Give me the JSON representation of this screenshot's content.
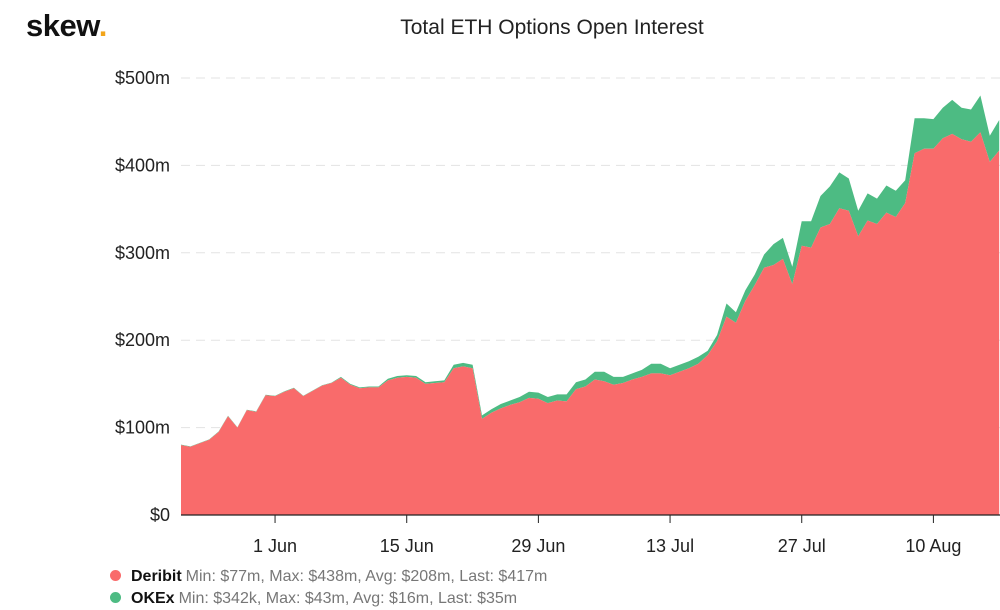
{
  "brand": {
    "logo_text": "skew",
    "logo_dot": "."
  },
  "chart_data": {
    "type": "area",
    "stacked": true,
    "title": "Total ETH Options Open Interest",
    "ylim": [
      0,
      500
    ],
    "yticks": [
      0,
      100,
      200,
      300,
      400,
      500
    ],
    "ytick_labels": [
      "$0",
      "$100m",
      "$200m",
      "$300m",
      "$400m",
      "$500m"
    ],
    "x_start": "2020-05-22",
    "xtick_labels": [
      {
        "label": "1 Jun",
        "date": "2020-06-01"
      },
      {
        "label": "15 Jun",
        "date": "2020-06-15"
      },
      {
        "label": "29 Jun",
        "date": "2020-06-29"
      },
      {
        "label": "13 Jul",
        "date": "2020-07-13"
      },
      {
        "label": "27 Jul",
        "date": "2020-07-27"
      },
      {
        "label": "10 Aug",
        "date": "2020-08-10"
      }
    ],
    "grid": true,
    "legend_position": "bottom-left",
    "series": [
      {
        "name": "Deribit",
        "color": "#f96b6b",
        "summary": "Min: $77m, Max: $438m, Avg: $208m, Last: $417m",
        "values": [
          80,
          78,
          82,
          86,
          95,
          113,
          100,
          120,
          118,
          137,
          136,
          141,
          145,
          136,
          142,
          148,
          151,
          157,
          149,
          145,
          146,
          146,
          154,
          157,
          158,
          157,
          150,
          151,
          152,
          168,
          170,
          168,
          110,
          117,
          122,
          126,
          129,
          134,
          133,
          128,
          131,
          130,
          144,
          147,
          155,
          153,
          149,
          151,
          155,
          158,
          162,
          162,
          160,
          164,
          168,
          173,
          183,
          199,
          227,
          220,
          245,
          263,
          283,
          286,
          293,
          264,
          308,
          306,
          329,
          333,
          351,
          348,
          319,
          337,
          333,
          346,
          341,
          357,
          414,
          419,
          419,
          431,
          436,
          430,
          427,
          438,
          404,
          417
        ]
      },
      {
        "name": "OKEx",
        "color": "#4dbb83",
        "summary": "Min: $342k, Max: $43m, Avg: $16m, Last: $35m",
        "values": [
          0.5,
          0.5,
          0.5,
          0.5,
          0.5,
          0.5,
          0.5,
          0.5,
          0.5,
          0.5,
          0.5,
          0.5,
          0.5,
          0.5,
          0.5,
          0.5,
          0.5,
          1,
          1,
          1,
          1,
          1,
          2,
          2,
          2,
          2,
          2,
          2,
          2,
          4,
          4,
          4,
          4,
          4,
          5,
          5,
          6,
          7,
          7,
          7,
          7,
          8,
          8,
          8,
          9,
          11,
          9,
          7,
          7,
          8,
          11,
          11,
          8,
          8,
          8,
          8,
          5,
          7,
          15,
          12,
          12,
          12,
          15,
          24,
          24,
          20,
          28,
          30,
          36,
          43,
          41,
          37,
          29,
          31,
          29,
          31,
          30,
          26,
          40,
          35,
          34,
          35,
          39,
          36,
          37,
          42,
          30,
          35
        ]
      }
    ]
  }
}
